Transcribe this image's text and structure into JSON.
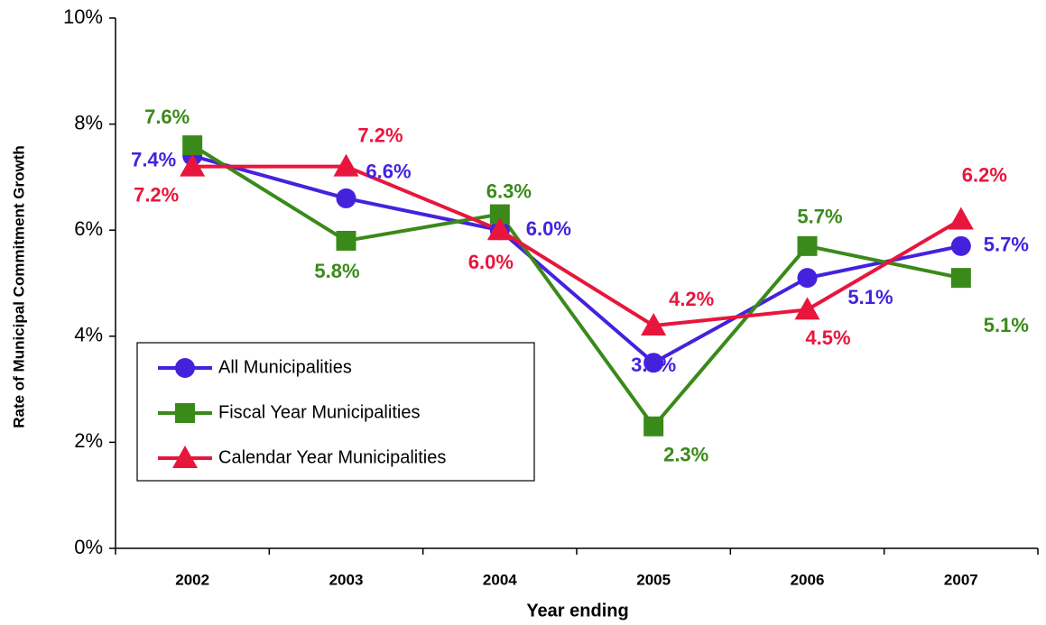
{
  "chart_data": {
    "type": "line",
    "x_label": "Year ending",
    "y_label": "Rate of Municipal Commitment Growth",
    "categories": [
      "2002",
      "2003",
      "2004",
      "2005",
      "2006",
      "2007"
    ],
    "series": [
      {
        "name": "All Municipalities",
        "color": "#4422dd",
        "marker": "circle",
        "values": [
          7.4,
          6.6,
          6.0,
          3.5,
          5.1,
          5.7
        ],
        "value_labels": [
          "7.4%",
          "6.6%",
          "6.0%",
          "3.5%",
          "5.1%",
          "5.7%"
        ]
      },
      {
        "name": "Fiscal Year Municipalities",
        "color": "#3a8a1a",
        "marker": "square",
        "values": [
          7.6,
          5.8,
          6.3,
          2.3,
          5.7,
          5.1
        ],
        "value_labels": [
          "7.6%",
          "5.8%",
          "6.3%",
          "2.3%",
          "5.7%",
          "5.1%"
        ]
      },
      {
        "name": "Calendar Year Municipalities",
        "color": "#e8163c",
        "marker": "triangle",
        "values": [
          7.2,
          7.2,
          6.0,
          4.2,
          4.5,
          6.2
        ],
        "value_labels": [
          "7.2%",
          "7.2%",
          "6.0%",
          "4.2%",
          "4.5%",
          "6.2%"
        ]
      }
    ],
    "ylim": [
      0,
      10
    ],
    "yticks": [
      {
        "value": 0,
        "label": "0%"
      },
      {
        "value": 2,
        "label": "2%"
      },
      {
        "value": 4,
        "label": "4%"
      },
      {
        "value": 6,
        "label": "6%"
      },
      {
        "value": 8,
        "label": "8%"
      },
      {
        "value": 10,
        "label": "10%"
      }
    ],
    "grid": false,
    "legend": "lower left"
  }
}
